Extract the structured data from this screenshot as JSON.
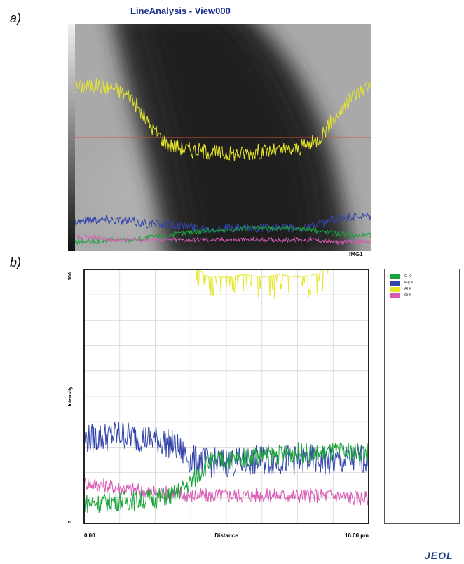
{
  "panels": {
    "a_label": "a)",
    "b_label": "b)"
  },
  "view_title": "LineAnalysis - View000",
  "image_tag": "IMG1",
  "logo_text": "JEOL",
  "colors": {
    "O K": "#1aa33a",
    "Mg K": "#3344aa",
    "Al K": "#e6e62a",
    "Si K": "#d85ab4",
    "scan_line": "#e0502a"
  },
  "legend": [
    {
      "name": "O K",
      "color": "#1aa33a"
    },
    {
      "name": "Mg K",
      "color": "#3344aa"
    },
    {
      "name": "Al K",
      "color": "#e6e62a"
    },
    {
      "name": "Si K",
      "color": "#d85ab4"
    }
  ],
  "chart_data": {
    "type": "line",
    "title": "",
    "xlabel": "Distance",
    "ylabel": "Intensity",
    "x_tick_labels": [
      "0.00",
      "16.00 µm"
    ],
    "y_tick_labels": [
      "0",
      "100"
    ],
    "xlim": [
      0,
      16
    ],
    "ylim": [
      0,
      100
    ],
    "grid": true,
    "legend_position": "right",
    "x": [
      0,
      1,
      2,
      3,
      4,
      5,
      6,
      7,
      8,
      9,
      10,
      11,
      12,
      13,
      14,
      15,
      16
    ],
    "series": [
      {
        "name": "O K",
        "values": [
          8,
          8,
          9,
          9,
          10,
          11,
          16,
          24,
          25,
          26,
          27,
          27,
          28,
          27,
          28,
          28,
          28
        ]
      },
      {
        "name": "Mg K",
        "values": [
          33,
          34,
          35,
          34,
          33,
          31,
          25,
          24,
          24,
          24,
          25,
          25,
          25,
          25,
          24,
          25,
          26
        ]
      },
      {
        "name": "Al K",
        "values": [
          100,
          100,
          100,
          100,
          100,
          100,
          100,
          95,
          95,
          96,
          95,
          96,
          95,
          96,
          100,
          100,
          100
        ]
      },
      {
        "name": "Si K",
        "values": [
          16,
          15,
          14,
          13,
          12,
          12,
          11,
          11,
          11,
          11,
          11,
          11,
          11,
          11,
          11,
          10,
          10
        ]
      }
    ]
  },
  "micrograph_profiles": {
    "xlim": [
      0,
      16
    ],
    "scan_line_level": 0.5,
    "series": [
      {
        "name": "Al K",
        "values": [
          0.72,
          0.73,
          0.72,
          0.68,
          0.56,
          0.47,
          0.45,
          0.44,
          0.43,
          0.43,
          0.44,
          0.44,
          0.45,
          0.48,
          0.58,
          0.68,
          0.74
        ]
      },
      {
        "name": "Mg K",
        "values": [
          0.13,
          0.14,
          0.14,
          0.13,
          0.12,
          0.12,
          0.11,
          0.1,
          0.1,
          0.1,
          0.1,
          0.1,
          0.1,
          0.11,
          0.14,
          0.15,
          0.15
        ]
      },
      {
        "name": "O K",
        "values": [
          0.04,
          0.04,
          0.05,
          0.05,
          0.06,
          0.07,
          0.08,
          0.09,
          0.09,
          0.1,
          0.1,
          0.1,
          0.1,
          0.09,
          0.08,
          0.07,
          0.07
        ]
      },
      {
        "name": "Si K",
        "values": [
          0.06,
          0.06,
          0.05,
          0.05,
          0.05,
          0.05,
          0.05,
          0.05,
          0.05,
          0.05,
          0.05,
          0.05,
          0.05,
          0.05,
          0.04,
          0.04,
          0.04
        ]
      }
    ]
  }
}
